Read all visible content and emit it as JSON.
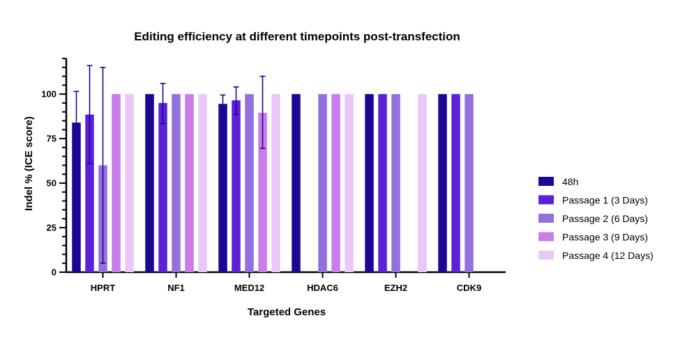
{
  "chart_data": {
    "type": "bar",
    "title": "Editing efficiency at different timepoints post-transfection",
    "xlabel": "Targeted Genes",
    "ylabel": "Indel % (ICE score)",
    "ylim": [
      0,
      120
    ],
    "yticks": [
      0,
      25,
      50,
      75,
      100
    ],
    "categories": [
      "HPRT",
      "NF1",
      "MED12",
      "HDAC6",
      "EZH2",
      "CDK9"
    ],
    "legend_position": "right",
    "grid": false,
    "series": [
      {
        "name": "48h",
        "color": "#1c0795",
        "values": [
          84,
          100,
          94.5,
          100,
          100,
          100
        ],
        "error_high": [
          101.5,
          null,
          99.5,
          null,
          null,
          null
        ],
        "error_low": [
          null,
          null,
          null,
          null,
          null,
          null
        ]
      },
      {
        "name": "Passage 1 (3 Days)",
        "color": "#5c21d6",
        "values": [
          88.5,
          95,
          96.5,
          null,
          100,
          100
        ],
        "error_high": [
          116,
          106,
          104,
          null,
          null,
          null
        ],
        "error_low": [
          61,
          83.5,
          88.5,
          null,
          null,
          null
        ]
      },
      {
        "name": "Passage 2 (6 Days)",
        "color": "#9470dc",
        "values": [
          60,
          100,
          100,
          100,
          100,
          100
        ],
        "error_high": [
          115,
          null,
          null,
          null,
          null,
          null
        ],
        "error_low": [
          5,
          null,
          null,
          null,
          null,
          null
        ]
      },
      {
        "name": "Passage 3 (9 Days)",
        "color": "#c97de9",
        "values": [
          100,
          100,
          89.5,
          100,
          null,
          null
        ],
        "error_high": [
          null,
          null,
          110,
          null,
          null,
          null
        ],
        "error_low": [
          null,
          null,
          69.5,
          null,
          null,
          null
        ]
      },
      {
        "name": "Passage 4 (12 Days)",
        "color": "#e9c8f6",
        "values": [
          100,
          100,
          100,
          100,
          100,
          null
        ],
        "error_high": [
          null,
          null,
          null,
          null,
          null,
          null
        ],
        "error_low": [
          null,
          null,
          null,
          null,
          null,
          null
        ]
      }
    ]
  }
}
